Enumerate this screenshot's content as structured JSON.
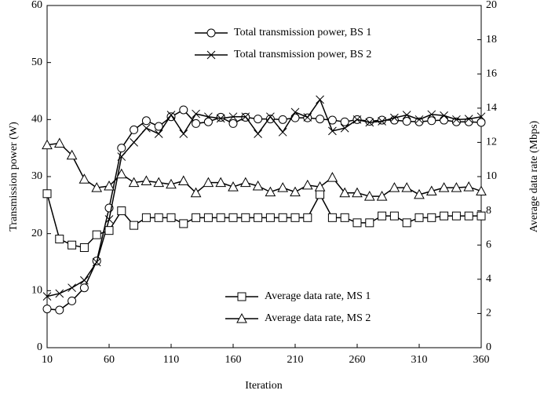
{
  "chart_data": {
    "type": "line",
    "xlabel": "Iteration",
    "ylabel": "Transmission power (W)",
    "y2label": "Average data rate (Mbps)",
    "x": [
      10,
      20,
      30,
      40,
      50,
      60,
      70,
      80,
      90,
      100,
      110,
      120,
      130,
      140,
      150,
      160,
      170,
      180,
      190,
      200,
      210,
      220,
      230,
      240,
      250,
      260,
      270,
      280,
      290,
      300,
      310,
      320,
      330,
      340,
      350,
      360
    ],
    "xlim": [
      10,
      360
    ],
    "xticks": [
      10,
      60,
      110,
      160,
      210,
      260,
      310,
      360
    ],
    "ylim": [
      0,
      60
    ],
    "yticks": [
      0,
      10,
      20,
      30,
      40,
      50,
      60
    ],
    "y2lim": [
      0,
      20
    ],
    "y2ticks": [
      0,
      2,
      4,
      6,
      8,
      10,
      12,
      14,
      16,
      18,
      20
    ],
    "legend": {
      "y": "upper center",
      "y2": "lower right"
    },
    "series": [
      {
        "name": "Total transmission power, BS 1",
        "color": "#000000",
        "marker": "circle",
        "axis": "y",
        "values": [
          6.8,
          6.6,
          8.2,
          10.5,
          15.2,
          24.5,
          35,
          38.2,
          39.8,
          38.8,
          40.5,
          41.7,
          39.3,
          39.6,
          40.4,
          39.3,
          40.4,
          40.1,
          40.1,
          40.0,
          40.3,
          40.3,
          40.1,
          39.9,
          39.6,
          40.0,
          39.7,
          39.9,
          39.9,
          39.7,
          39.6,
          39.8,
          39.9,
          39.6,
          39.6,
          39.5
        ]
      },
      {
        "name": "Total transmission power, BS 2",
        "color": "#000000",
        "marker": "x",
        "axis": "y",
        "values": [
          9.0,
          9.5,
          10.5,
          11.8,
          15,
          22.5,
          33.5,
          36,
          38.5,
          37.5,
          40.8,
          37.5,
          41,
          40.5,
          40.2,
          40.5,
          40.5,
          37.5,
          40.5,
          37.8,
          41.3,
          40.4,
          43.5,
          38.0,
          38.5,
          40.0,
          39.5,
          39.7,
          40.3,
          40.8,
          40.0,
          40.9,
          40.7,
          40.0,
          40.1,
          40.5
        ]
      },
      {
        "name": "Average data rate, MS 1",
        "color": "#000000",
        "marker": "square",
        "axis": "y2",
        "values": [
          9.0,
          6.35,
          6.0,
          5.85,
          6.6,
          6.85,
          8.0,
          7.15,
          7.6,
          7.6,
          7.6,
          7.25,
          7.6,
          7.6,
          7.6,
          7.6,
          7.6,
          7.6,
          7.6,
          7.6,
          7.6,
          7.6,
          8.95,
          7.6,
          7.6,
          7.3,
          7.3,
          7.7,
          7.7,
          7.3,
          7.6,
          7.6,
          7.7,
          7.7,
          7.7,
          7.7
        ]
      },
      {
        "name": "Average data rate, MS 2",
        "color": "#000000",
        "marker": "triangle",
        "axis": "y2",
        "values": [
          11.85,
          11.95,
          11.25,
          9.85,
          9.35,
          9.45,
          10.15,
          9.65,
          9.75,
          9.65,
          9.55,
          9.75,
          9.05,
          9.65,
          9.65,
          9.4,
          9.65,
          9.45,
          9.1,
          9.35,
          9.1,
          9.5,
          9.4,
          9.95,
          9.05,
          9.05,
          8.85,
          8.85,
          9.35,
          9.35,
          8.95,
          9.15,
          9.35,
          9.35,
          9.4,
          9.15
        ]
      }
    ]
  }
}
